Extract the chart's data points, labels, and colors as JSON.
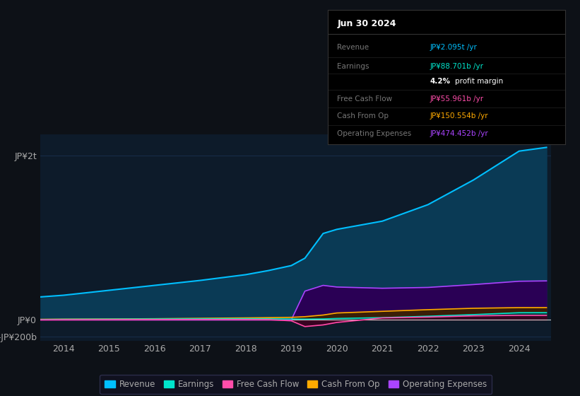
{
  "bg_color": "#0d1117",
  "plot_bg_color": "#0d1b2a",
  "years": [
    2013.5,
    2014,
    2015,
    2016,
    2017,
    2018,
    2018.5,
    2019,
    2019.3,
    2019.7,
    2020,
    2021,
    2022,
    2023,
    2024,
    2024.6
  ],
  "revenue": [
    280,
    300,
    360,
    420,
    480,
    550,
    600,
    660,
    750,
    1050,
    1100,
    1200,
    1400,
    1700,
    2050,
    2095
  ],
  "earnings": [
    5,
    8,
    10,
    12,
    14,
    15,
    14,
    12,
    10,
    12,
    18,
    28,
    45,
    65,
    88,
    88.701
  ],
  "free_cash_flow": [
    2,
    3,
    4,
    5,
    6,
    5,
    4,
    -10,
    -80,
    -60,
    -30,
    25,
    35,
    50,
    56,
    55.961
  ],
  "cash_from_op": [
    8,
    10,
    12,
    15,
    20,
    25,
    28,
    32,
    40,
    60,
    85,
    105,
    125,
    142,
    150,
    150.554
  ],
  "operating_expenses": [
    0,
    0,
    0,
    0,
    0,
    0,
    0,
    0,
    350,
    420,
    400,
    385,
    395,
    430,
    470,
    474.452
  ],
  "revenue_color": "#00bfff",
  "revenue_fill": "#0a3a55",
  "earnings_color": "#00e5cc",
  "earnings_fill": "#003d3d",
  "free_cash_flow_color": "#ff4daa",
  "free_cash_flow_fill": "#3d0020",
  "cash_from_op_color": "#ffaa00",
  "cash_from_op_fill": "#3d2200",
  "operating_expenses_color": "#aa44ff",
  "operating_expenses_fill": "#2a0055",
  "ylim_min": -250,
  "ylim_max": 2250,
  "xticks": [
    2014,
    2015,
    2016,
    2017,
    2018,
    2019,
    2020,
    2021,
    2022,
    2023,
    2024
  ],
  "grid_color": "#1a3050",
  "text_color": "#aaaaaa",
  "info_box": {
    "title": "Jun 30 2024",
    "rows": [
      {
        "label": "Revenue",
        "value": "JP¥2.095t /yr",
        "value_color": "#00bfff"
      },
      {
        "label": "Earnings",
        "value": "JP¥88.701b /yr",
        "value_color": "#00e5cc"
      },
      {
        "label": "",
        "value": "4.2% profit margin",
        "value_color": "#ffffff"
      },
      {
        "label": "Free Cash Flow",
        "value": "JP¥55.961b /yr",
        "value_color": "#ff4daa"
      },
      {
        "label": "Cash From Op",
        "value": "JP¥150.554b /yr",
        "value_color": "#ffaa00"
      },
      {
        "label": "Operating Expenses",
        "value": "JP¥474.452b /yr",
        "value_color": "#aa44ff"
      }
    ]
  },
  "legend_items": [
    {
      "label": "Revenue",
      "color": "#00bfff"
    },
    {
      "label": "Earnings",
      "color": "#00e5cc"
    },
    {
      "label": "Free Cash Flow",
      "color": "#ff4daa"
    },
    {
      "label": "Cash From Op",
      "color": "#ffaa00"
    },
    {
      "label": "Operating Expenses",
      "color": "#aa44ff"
    }
  ]
}
